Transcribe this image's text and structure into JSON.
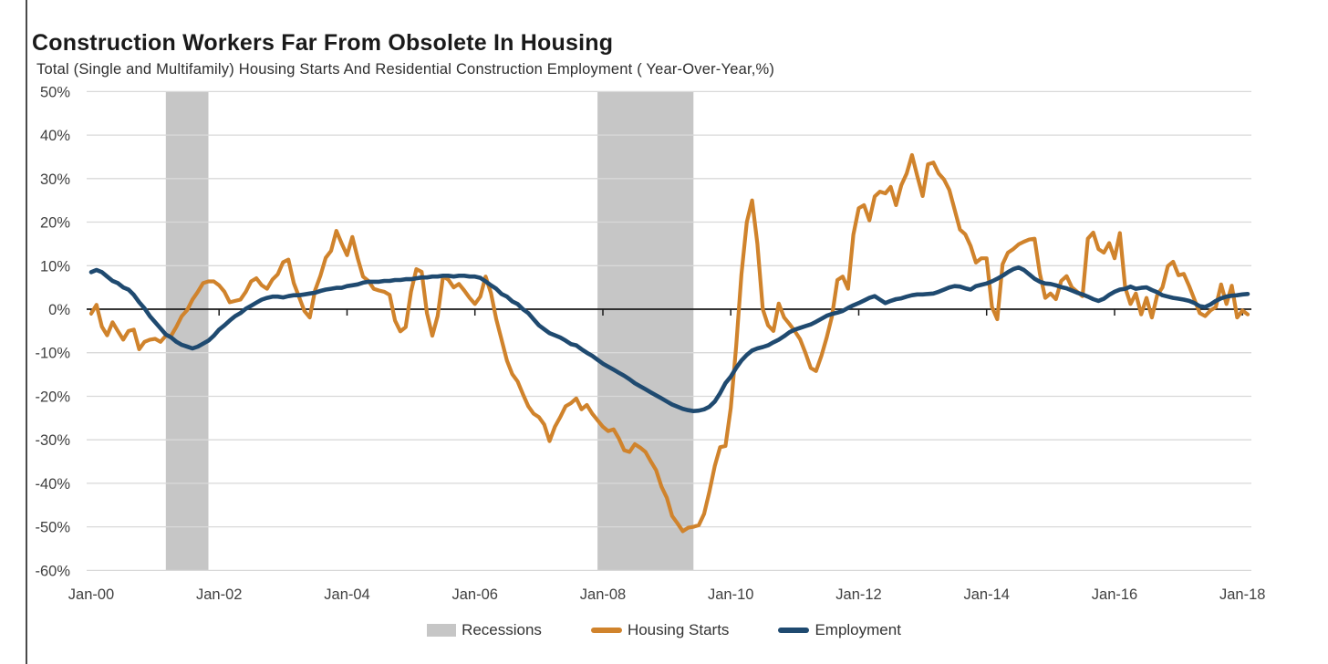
{
  "header": {
    "title": "Construction Workers Far From Obsolete In Housing",
    "subtitle": "Total (Single and Multifamily) Housing Starts And Residential Construction Employment ( Year-Over-Year,%)"
  },
  "legend": {
    "items": [
      {
        "label": "Recessions",
        "type": "band",
        "color": "#c6c6c6"
      },
      {
        "label": "Housing Starts",
        "type": "line",
        "color": "#d0832c"
      },
      {
        "label": "Employment",
        "type": "line",
        "color": "#1f4a70"
      }
    ]
  },
  "colors": {
    "housing_starts": "#d0832c",
    "employment": "#1f4a70",
    "recession_band": "#c6c6c6",
    "gridline": "#d9d9d9",
    "zero_axis": "#1a1a1a",
    "axis_text": "#404040"
  },
  "chart_data": {
    "type": "line",
    "title": "Construction Workers Far From Obsolete In Housing",
    "subtitle": "Total (Single and Multifamily) Housing Starts And Residential Construction Employment ( Year-Over-Year,%)",
    "frequency": "monthly",
    "x_start": "2000-01",
    "x_end": "2018-02",
    "x_tick_labels": [
      "Jan-00",
      "Jan-02",
      "Jan-04",
      "Jan-06",
      "Jan-08",
      "Jan-10",
      "Jan-12",
      "Jan-14",
      "Jan-16",
      "Jan-18"
    ],
    "y_tick_labels": [
      "50%",
      "40%",
      "30%",
      "20%",
      "10%",
      "0%",
      "-10%",
      "-20%",
      "-30%",
      "-40%",
      "-50%",
      "-60%"
    ],
    "ylim": [
      -60,
      50
    ],
    "grid": "horizontal",
    "legend_position": "bottom",
    "recession_bands": [
      {
        "start": "2001-03",
        "end": "2001-11"
      },
      {
        "start": "2007-12",
        "end": "2009-06"
      }
    ],
    "series": [
      {
        "name": "Housing Starts",
        "color": "#d0832c",
        "values": [
          -1,
          1,
          -4,
          -6,
          -3,
          -5,
          -7,
          -5,
          -4.7,
          -9.2,
          -7.5,
          -7,
          -6.8,
          -7.5,
          -6.1,
          -6.1,
          -4,
          -1.6,
          -0.2,
          2.2,
          4,
          6,
          6.4,
          6.4,
          5.5,
          4,
          1.6,
          1.9,
          2.2,
          4,
          6.4,
          7.1,
          5.5,
          4.7,
          6.8,
          8,
          10.8,
          11.4,
          6,
          2.8,
          -0.4,
          -1.9,
          4.3,
          7.7,
          11.8,
          13.4,
          18,
          15.1,
          12.4,
          16.6,
          11.7,
          7.5,
          6.5,
          4.7,
          4.3,
          4,
          3.3,
          -2.6,
          -5.1,
          -4.1,
          4,
          9.2,
          8.6,
          -0.9,
          -6.1,
          -1.6,
          7.5,
          6.8,
          5,
          5.8,
          4.3,
          2.6,
          1.2,
          2.9,
          7.5,
          3.7,
          -2.3,
          -7,
          -11.8,
          -14.9,
          -16.6,
          -19.5,
          -22.3,
          -24,
          -24.8,
          -26.5,
          -30.3,
          -27,
          -24.8,
          -22.3,
          -21.6,
          -20.5,
          -23,
          -22,
          -24,
          -25.5,
          -27,
          -28,
          -27.6,
          -29.7,
          -32.4,
          -32.8,
          -31,
          -31.8,
          -32.8,
          -35,
          -37,
          -40.8,
          -43.3,
          -47.5,
          -49.2,
          -51,
          -50.2,
          -50,
          -49.6,
          -47,
          -41.9,
          -36,
          -31.7,
          -31.4,
          -22.7,
          -8.6,
          8,
          20,
          25,
          15,
          0,
          -3.7,
          -5,
          1.3,
          -1.9,
          -3.4,
          -5,
          -6.9,
          -10,
          -13.5,
          -14.2,
          -10.7,
          -6.5,
          -1.6,
          6.7,
          7.5,
          4.7,
          17.1,
          23.2,
          23.9,
          20.4,
          25.9,
          27,
          26.6,
          28.1,
          23.9,
          28.5,
          31.2,
          35.4,
          30.6,
          26,
          33.3,
          33.7,
          31.2,
          29.8,
          27.4,
          22.9,
          18.3,
          17.2,
          14.5,
          10.7,
          11.7,
          11.7,
          0.5,
          -2.3,
          10.3,
          13,
          13.8,
          14.9,
          15.5,
          16,
          16.2,
          8.2,
          2.6,
          3.6,
          2.3,
          6.5,
          7.6,
          5,
          4,
          3,
          16.2,
          17.6,
          13.8,
          13,
          15.2,
          11.7,
          17.5,
          5,
          1.2,
          3.6,
          -1.2,
          2.6,
          -1.9,
          3.2,
          5,
          9.9,
          10.9,
          7.8,
          8.1,
          5.3,
          2.2,
          -0.9,
          -1.6,
          -0.3,
          0.5,
          5.7,
          1.2,
          5.4,
          -1.9,
          -0.3,
          -1.2
        ]
      },
      {
        "name": "Employment",
        "color": "#1f4a70",
        "values": [
          8.5,
          9,
          8.5,
          7.5,
          6.5,
          6,
          5,
          4.5,
          3.3,
          1.6,
          0.2,
          -1.6,
          -3,
          -4.4,
          -5.8,
          -6.5,
          -7.5,
          -8.2,
          -8.6,
          -9,
          -8.6,
          -7.9,
          -7.2,
          -6.1,
          -4.7,
          -3.7,
          -2.6,
          -1.6,
          -0.9,
          0.1,
          0.8,
          1.5,
          2.2,
          2.6,
          2.9,
          2.9,
          2.7,
          3,
          3.2,
          3.2,
          3.4,
          3.6,
          3.8,
          4.2,
          4.5,
          4.7,
          4.9,
          4.9,
          5.3,
          5.5,
          5.7,
          6.1,
          6.3,
          6.3,
          6.3,
          6.5,
          6.5,
          6.7,
          6.7,
          6.9,
          6.9,
          7.1,
          7.3,
          7.3,
          7.5,
          7.5,
          7.7,
          7.7,
          7.5,
          7.7,
          7.7,
          7.5,
          7.5,
          7.2,
          6.4,
          5.5,
          4.7,
          3.5,
          2.9,
          1.8,
          1.2,
          0,
          -0.9,
          -2.3,
          -3.7,
          -4.6,
          -5.5,
          -6,
          -6.5,
          -7.2,
          -8,
          -8.3,
          -9.2,
          -10,
          -10.7,
          -11.6,
          -12.5,
          -13.2,
          -13.9,
          -14.6,
          -15.3,
          -16.1,
          -17,
          -17.7,
          -18.4,
          -19.1,
          -19.8,
          -20.5,
          -21.2,
          -21.9,
          -22.4,
          -22.9,
          -23.2,
          -23.4,
          -23.3,
          -23,
          -22.4,
          -21.2,
          -19.3,
          -17,
          -15.5,
          -13.5,
          -11.8,
          -10.5,
          -9.5,
          -9,
          -8.7,
          -8.3,
          -7.6,
          -7,
          -6.2,
          -5.3,
          -4.7,
          -4.3,
          -3.9,
          -3.5,
          -2.9,
          -2.2,
          -1.5,
          -1.1,
          -0.8,
          -0.4,
          0.3,
          0.9,
          1.4,
          2,
          2.6,
          3,
          2.2,
          1.4,
          1.9,
          2.3,
          2.5,
          2.9,
          3.2,
          3.4,
          3.4,
          3.5,
          3.6,
          4,
          4.5,
          5,
          5.3,
          5.2,
          4.8,
          4.5,
          5.3,
          5.6,
          5.9,
          6.4,
          7,
          7.7,
          8.5,
          9.2,
          9.6,
          9,
          8,
          7,
          6.3,
          5.9,
          5.8,
          5.5,
          5.1,
          4.8,
          4.3,
          3.8,
          3.4,
          2.9,
          2.3,
          1.9,
          2.4,
          3.3,
          4,
          4.5,
          4.7,
          5.2,
          4.7,
          4.9,
          5,
          4.4,
          3.9,
          3.2,
          2.9,
          2.6,
          2.4,
          2.2,
          1.9,
          1.4,
          0.7,
          0.5,
          1.1,
          1.9,
          2.5,
          2.9,
          3.1,
          3.2,
          3.4,
          3.5
        ]
      }
    ]
  }
}
